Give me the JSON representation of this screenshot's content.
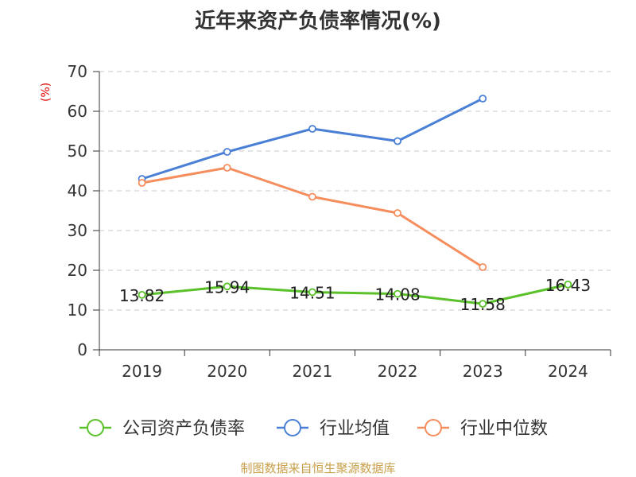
{
  "chart_data": {
    "type": "line",
    "title": "近年来资产负债率情况(%)",
    "ylabel": "(%)",
    "source_note": "制图数据来自恒生聚源数据库",
    "categories": [
      "2019",
      "2020",
      "2021",
      "2022",
      "2023",
      "2024"
    ],
    "ylim": [
      0,
      70
    ],
    "yticks": [
      0,
      10,
      20,
      30,
      40,
      50,
      60,
      70
    ],
    "grid": true,
    "legend_position": "bottom",
    "series": [
      {
        "name": "公司资产负债率",
        "color": "#5bc12a",
        "values": [
          13.82,
          15.94,
          14.51,
          14.08,
          11.58,
          16.43
        ],
        "show_labels": true
      },
      {
        "name": "行业均值",
        "color": "#4a7fd6",
        "values": [
          43.0,
          49.8,
          55.6,
          52.5,
          63.2,
          null
        ],
        "show_labels": false
      },
      {
        "name": "行业中位数",
        "color": "#f58d5d",
        "values": [
          42.0,
          45.8,
          38.5,
          34.4,
          20.8,
          null
        ],
        "show_labels": false
      }
    ]
  }
}
